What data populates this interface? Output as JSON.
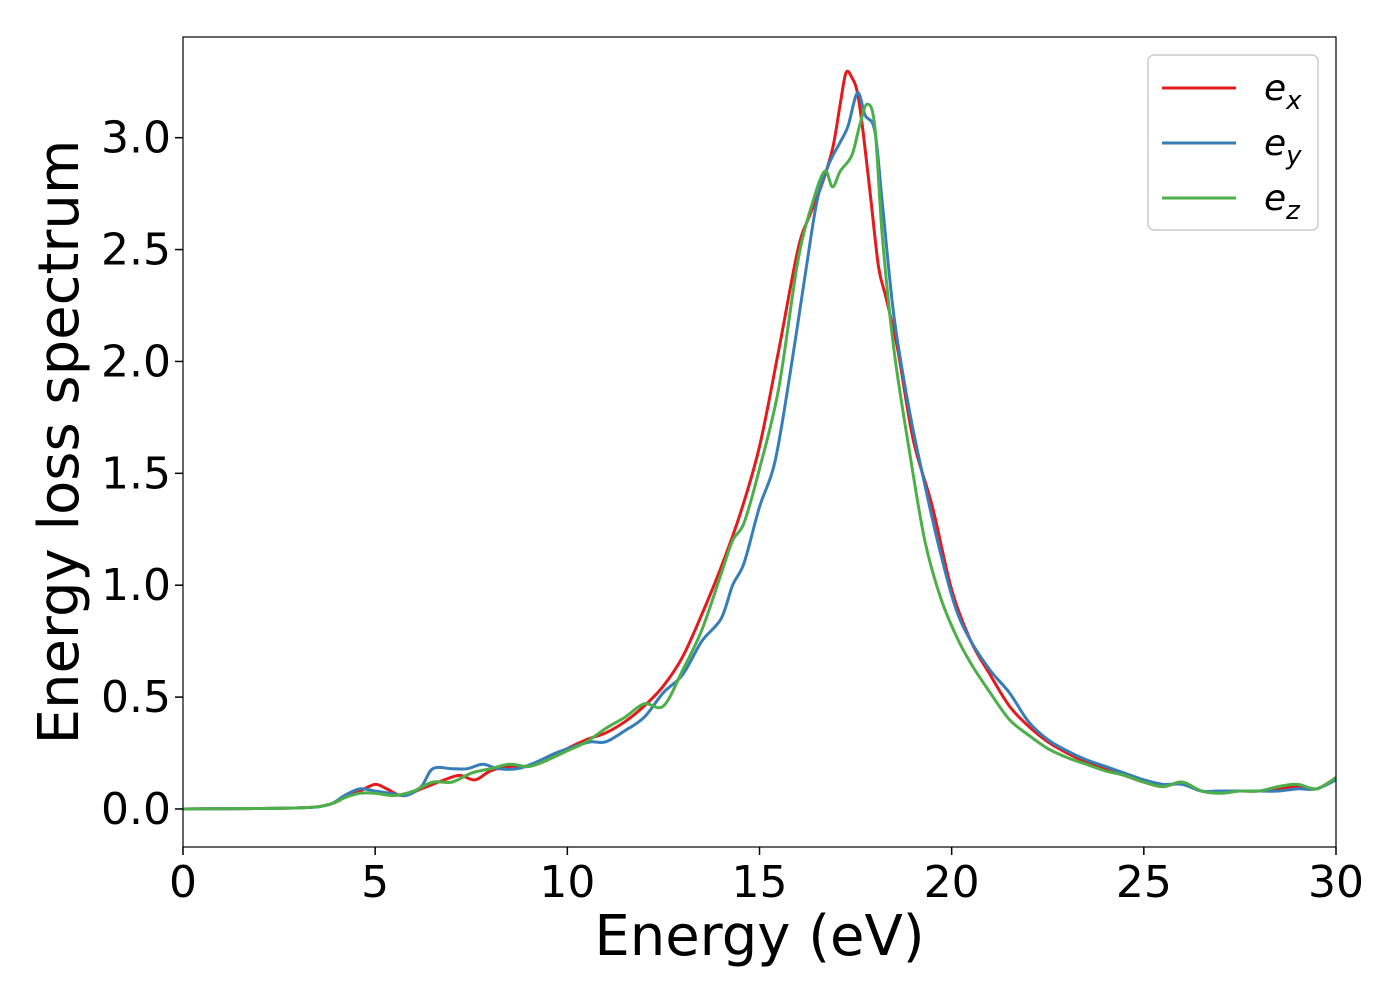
{
  "chart_data": {
    "type": "line",
    "title": "",
    "xlabel": "Energy (eV)",
    "ylabel": "Energy loss spectrum",
    "xlim": [
      0,
      30
    ],
    "ylim": [
      -0.17,
      3.45
    ],
    "xticks": [
      0,
      5,
      10,
      15,
      20,
      25,
      30
    ],
    "yticks": [
      0.0,
      0.5,
      1.0,
      1.5,
      2.0,
      2.5,
      3.0
    ],
    "xtick_labels": [
      "0",
      "5",
      "10",
      "15",
      "20",
      "25",
      "30"
    ],
    "ytick_labels": [
      "0.0",
      "0.5",
      "1.0",
      "1.5",
      "2.0",
      "2.5",
      "3.0"
    ],
    "grid": false,
    "legend_position": "top-right",
    "series": [
      {
        "name": "e",
        "subscript": "x",
        "color": "#e41a1c",
        "x": [
          0,
          3,
          3.8,
          4.2,
          4.6,
          5.0,
          5.3,
          5.7,
          6.2,
          6.8,
          7.2,
          7.6,
          8.0,
          8.5,
          9.0,
          9.5,
          10.0,
          10.5,
          11.0,
          11.5,
          12.0,
          12.5,
          13.0,
          13.5,
          14.0,
          14.5,
          15.0,
          15.5,
          16.0,
          16.3,
          16.6,
          16.9,
          17.1,
          17.25,
          17.4,
          17.55,
          17.7,
          17.9,
          18.1,
          18.3,
          18.6,
          19.0,
          19.5,
          20.0,
          20.5,
          21.0,
          21.5,
          22.0,
          22.5,
          23.0,
          23.5,
          24.0,
          24.5,
          25.0,
          25.5,
          26.0,
          26.5,
          27.0,
          27.5,
          28.0,
          28.5,
          29.0,
          29.5,
          30.0
        ],
        "y": [
          0.0,
          0.005,
          0.02,
          0.05,
          0.08,
          0.11,
          0.09,
          0.06,
          0.09,
          0.13,
          0.15,
          0.13,
          0.17,
          0.19,
          0.19,
          0.22,
          0.27,
          0.31,
          0.34,
          0.39,
          0.46,
          0.55,
          0.68,
          0.87,
          1.08,
          1.32,
          1.62,
          2.05,
          2.5,
          2.65,
          2.78,
          2.95,
          3.15,
          3.29,
          3.27,
          3.2,
          3.02,
          2.72,
          2.42,
          2.28,
          2.05,
          1.65,
          1.35,
          0.98,
          0.75,
          0.6,
          0.46,
          0.37,
          0.3,
          0.25,
          0.21,
          0.18,
          0.15,
          0.12,
          0.1,
          0.12,
          0.08,
          0.08,
          0.08,
          0.08,
          0.09,
          0.1,
          0.09,
          0.14
        ]
      },
      {
        "name": "e",
        "subscript": "y",
        "color": "#377eb8",
        "x": [
          0,
          3,
          3.8,
          4.2,
          4.6,
          5.0,
          5.4,
          5.8,
          6.2,
          6.5,
          7.0,
          7.4,
          7.8,
          8.2,
          8.7,
          9.2,
          9.7,
          10.2,
          10.6,
          11.0,
          11.5,
          12.0,
          12.5,
          13.0,
          13.5,
          14.0,
          14.3,
          14.6,
          15.0,
          15.4,
          15.8,
          16.2,
          16.5,
          16.8,
          17.1,
          17.3,
          17.55,
          17.75,
          18.0,
          18.2,
          18.5,
          18.9,
          19.3,
          19.7,
          20.1,
          20.5,
          21.0,
          21.5,
          22.0,
          22.5,
          23.0,
          23.5,
          24.0,
          24.5,
          25.0,
          25.5,
          26.0,
          26.5,
          27.0,
          27.5,
          28.0,
          28.5,
          29.0,
          29.5,
          30.0
        ],
        "y": [
          0.0,
          0.005,
          0.02,
          0.06,
          0.09,
          0.08,
          0.07,
          0.06,
          0.1,
          0.18,
          0.18,
          0.18,
          0.2,
          0.18,
          0.18,
          0.21,
          0.25,
          0.28,
          0.3,
          0.3,
          0.35,
          0.41,
          0.52,
          0.6,
          0.75,
          0.85,
          1.0,
          1.1,
          1.35,
          1.55,
          1.95,
          2.4,
          2.72,
          2.88,
          2.98,
          3.05,
          3.2,
          3.1,
          3.03,
          2.7,
          2.2,
          1.78,
          1.45,
          1.15,
          0.9,
          0.75,
          0.62,
          0.52,
          0.39,
          0.31,
          0.26,
          0.22,
          0.19,
          0.16,
          0.13,
          0.11,
          0.11,
          0.08,
          0.08,
          0.08,
          0.08,
          0.08,
          0.09,
          0.09,
          0.13
        ]
      },
      {
        "name": "e",
        "subscript": "z",
        "color": "#4daf4a",
        "x": [
          0,
          3,
          3.8,
          4.2,
          4.6,
          5.0,
          5.5,
          6.0,
          6.5,
          7.0,
          7.5,
          8.0,
          8.5,
          9.0,
          9.5,
          10.0,
          10.5,
          11.0,
          11.5,
          12.0,
          12.5,
          13.0,
          13.5,
          14.0,
          14.3,
          14.6,
          15.0,
          15.5,
          16.0,
          16.4,
          16.7,
          16.9,
          17.1,
          17.4,
          17.6,
          17.8,
          18.0,
          18.2,
          18.5,
          18.9,
          19.3,
          19.7,
          20.1,
          20.5,
          21.0,
          21.5,
          22.0,
          22.5,
          23.0,
          23.5,
          24.0,
          24.5,
          25.0,
          25.5,
          26.0,
          26.5,
          27.0,
          27.5,
          28.0,
          28.5,
          29.0,
          29.5,
          30.0
        ],
        "y": [
          0.0,
          0.005,
          0.02,
          0.05,
          0.07,
          0.07,
          0.06,
          0.08,
          0.12,
          0.12,
          0.16,
          0.18,
          0.2,
          0.19,
          0.22,
          0.26,
          0.3,
          0.36,
          0.41,
          0.47,
          0.46,
          0.62,
          0.8,
          1.05,
          1.2,
          1.28,
          1.52,
          1.88,
          2.45,
          2.72,
          2.85,
          2.78,
          2.85,
          2.92,
          3.05,
          3.15,
          3.05,
          2.55,
          2.05,
          1.6,
          1.2,
          0.95,
          0.78,
          0.65,
          0.52,
          0.4,
          0.33,
          0.27,
          0.23,
          0.2,
          0.17,
          0.15,
          0.12,
          0.1,
          0.12,
          0.08,
          0.07,
          0.08,
          0.08,
          0.1,
          0.11,
          0.09,
          0.14
        ]
      }
    ]
  }
}
